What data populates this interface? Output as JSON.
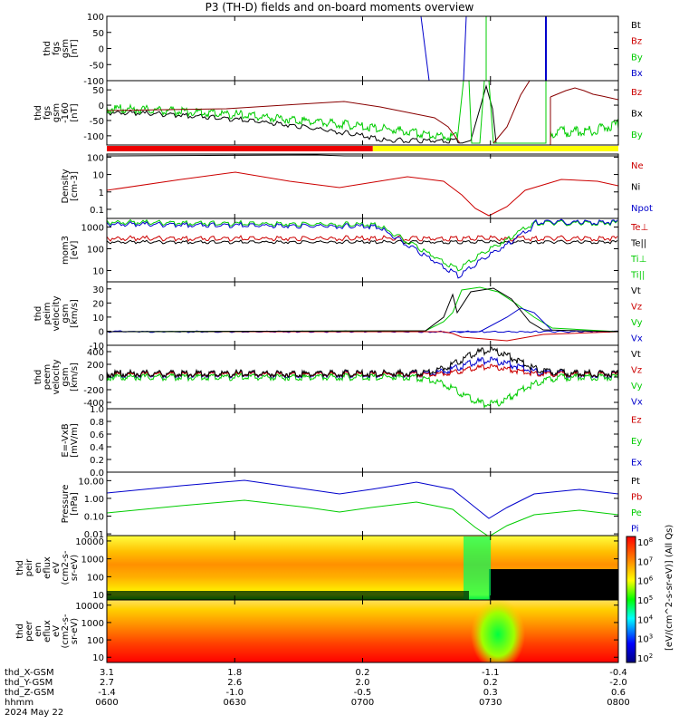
{
  "title": "P3 (TH-D) fields and on-board moments overview",
  "chart_data": {
    "type": "line",
    "x_ticks": [
      "0600",
      "0630",
      "0700",
      "0730",
      "0800"
    ],
    "footer": {
      "rows": [
        {
          "label": "thd_X-GSM",
          "values": [
            "3.1",
            "1.8",
            "0.2",
            "-1.1",
            "-0.4"
          ]
        },
        {
          "label": "thd_Y-GSM",
          "values": [
            "2.7",
            "2.6",
            "2.0",
            "0.2",
            "-2.0"
          ]
        },
        {
          "label": "thd_Z-GSM",
          "values": [
            "-1.4",
            "-1.0",
            "-0.5",
            "0.3",
            "0.6"
          ]
        },
        {
          "label": "hhmm",
          "values": [
            "0600",
            "0630",
            "0700",
            "0730",
            "0800"
          ]
        }
      ],
      "date": "2024 May 22"
    },
    "colorbar_label": "[eV/(cm^2-s-sr-eV)] (All Qs)",
    "colorbar_ticks": [
      "10^8",
      "10^7",
      "10^6",
      "10^5",
      "10^4",
      "10^3",
      "10^2"
    ],
    "mode_bar": {
      "segments": [
        {
          "color": "#ee0000",
          "end": 0.52
        },
        {
          "color": "#ffff00",
          "end": 1.0
        }
      ]
    },
    "panels": [
      {
        "ylabel": [
          "thd",
          "fgs",
          "gsm",
          "[nT]"
        ],
        "yticks": [
          "100",
          "50",
          "0",
          "-50",
          "-100"
        ],
        "ylim": [
          -100,
          100
        ],
        "legend": [
          {
            "text": "Bt",
            "color": "#000000"
          },
          {
            "text": "Bz",
            "color": "#cc0000"
          },
          {
            "text": "By",
            "color": "#00cc00"
          },
          {
            "text": "Bx",
            "color": "#0000cc"
          }
        ]
      },
      {
        "ylabel": [
          "thd",
          "fgs",
          "gsm",
          "-160",
          "[nT]"
        ],
        "yticks": [
          "50",
          "0",
          "-50",
          "-100"
        ],
        "ylim": [
          -130,
          80
        ],
        "legend": [
          {
            "text": "Bz",
            "color": "#cc0000"
          },
          {
            "text": "Bx",
            "color": "#000000"
          },
          {
            "text": "By",
            "color": "#00cc00"
          }
        ]
      },
      {
        "ylabel": [
          "Density",
          "[cm-3]"
        ],
        "yticks": [
          "100",
          "10",
          "1",
          "0.1"
        ],
        "ylim": [
          0.03,
          150
        ],
        "scale": "log",
        "legend": [
          {
            "text": "Ne",
            "color": "#cc0000"
          },
          {
            "text": "Ni",
            "color": "#000000"
          },
          {
            "text": "Npot",
            "color": "#0000cc"
          }
        ]
      },
      {
        "ylabel": [
          "mom3",
          "[eV]"
        ],
        "yticks": [
          "1000",
          "100",
          "10"
        ],
        "ylim": [
          3,
          2500
        ],
        "scale": "log",
        "legend": [
          {
            "text": "Te⊥",
            "color": "#cc0000"
          },
          {
            "text": "Te||",
            "color": "#000000"
          },
          {
            "text": "Ti⊥",
            "color": "#00cc00"
          },
          {
            "text": "Ti||",
            "color": "#00cc00"
          }
        ]
      },
      {
        "ylabel": [
          "thd",
          "peim",
          "velocity",
          "gsm",
          "[km/s]"
        ],
        "yticks": [
          "30",
          "20",
          "10",
          "0",
          "-10"
        ],
        "ylim": [
          -10,
          35
        ],
        "legend": [
          {
            "text": "Vt",
            "color": "#000000"
          },
          {
            "text": "Vz",
            "color": "#cc0000"
          },
          {
            "text": "Vy",
            "color": "#00cc00"
          },
          {
            "text": "Vx",
            "color": "#0000cc"
          }
        ]
      },
      {
        "ylabel": [
          "thd",
          "peem",
          "velocity",
          "gsm",
          "[km/s]"
        ],
        "yticks": [
          "400",
          "200",
          "0",
          "-200",
          "-400"
        ],
        "ylim": [
          -500,
          500
        ],
        "legend": [
          {
            "text": "Vt",
            "color": "#000000"
          },
          {
            "text": "Vz",
            "color": "#cc0000"
          },
          {
            "text": "Vy",
            "color": "#00cc00"
          },
          {
            "text": "Vx",
            "color": "#0000cc"
          }
        ]
      },
      {
        "ylabel": [
          "E=-VxB",
          "[mV/m]"
        ],
        "yticks": [
          "1.0",
          "0.8",
          "0.6",
          "0.4",
          "0.2",
          "0.0"
        ],
        "ylim": [
          0,
          1
        ],
        "legend": [
          {
            "text": "Ez",
            "color": "#cc0000"
          },
          {
            "text": "Ey",
            "color": "#00cc00"
          },
          {
            "text": "Ex",
            "color": "#0000cc"
          }
        ]
      },
      {
        "ylabel": [
          "Pressure",
          "[nPa]"
        ],
        "yticks": [
          "10.00",
          "1.00",
          "0.10",
          "0.01"
        ],
        "ylim": [
          0.008,
          30
        ],
        "scale": "log",
        "legend": [
          {
            "text": "Pt",
            "color": "#000000"
          },
          {
            "text": "Pb",
            "color": "#cc0000"
          },
          {
            "text": "Pe",
            "color": "#00cc00"
          },
          {
            "text": "Pi",
            "color": "#0000cc"
          }
        ]
      },
      {
        "ylabel": [
          "thd",
          "peir",
          "en",
          "eflux",
          "eV",
          "(cm2-s-",
          "sr-eV)"
        ],
        "yticks": [
          "10000",
          "1000",
          "100",
          "10"
        ],
        "ylim": [
          5,
          20000
        ],
        "scale": "log",
        "spectrogram": true,
        "legend": []
      },
      {
        "ylabel": [
          "thd",
          "peer",
          "en",
          "eflux",
          "eV",
          "(cm2-s-",
          "sr-eV)"
        ],
        "yticks": [
          "10000",
          "1000",
          "100",
          "10"
        ],
        "ylim": [
          5,
          20000
        ],
        "scale": "log",
        "spectrogram": true,
        "legend": []
      }
    ]
  }
}
